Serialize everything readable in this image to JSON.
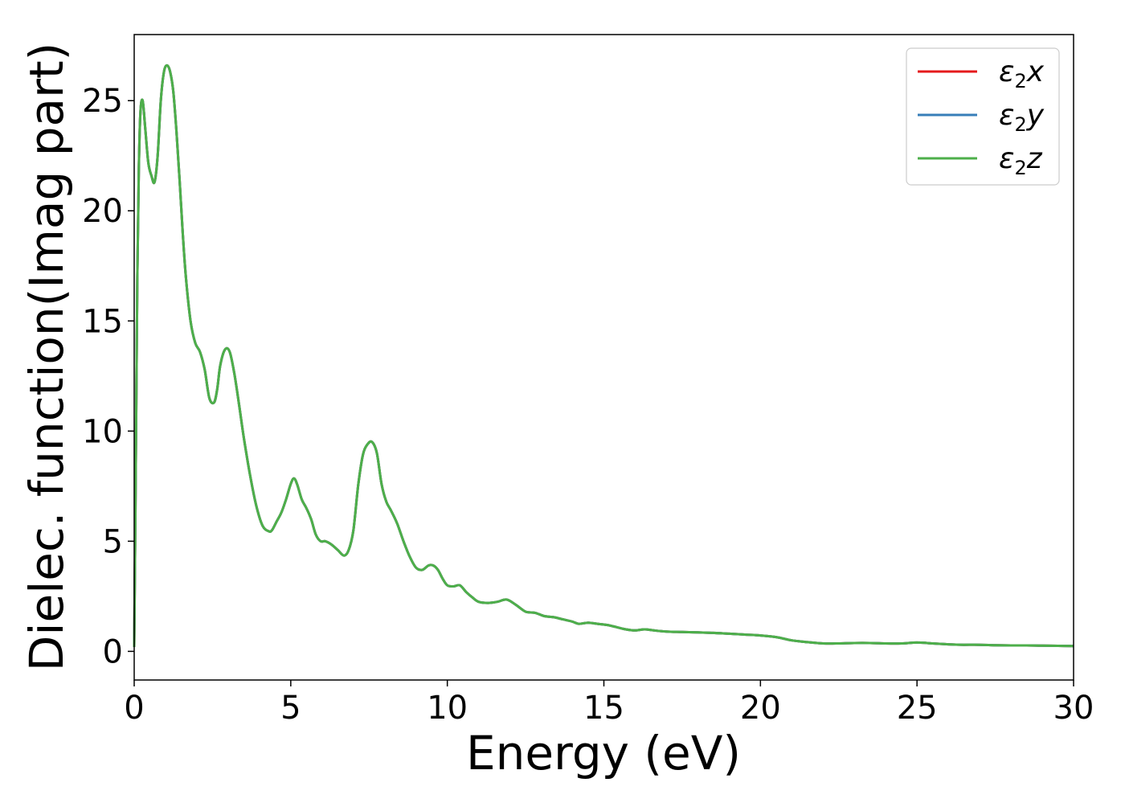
{
  "chart_data": {
    "type": "line",
    "title": "",
    "xlabel": "Energy (eV)",
    "ylabel": "Dielec. function(Imag part)",
    "xlim": [
      0,
      30
    ],
    "ylim": [
      -1.3,
      28
    ],
    "xticks": [
      0,
      5,
      10,
      15,
      20,
      25,
      30
    ],
    "yticks": [
      0,
      5,
      10,
      15,
      20,
      25
    ],
    "grid": false,
    "legend_position": "top-right",
    "x": [
      0,
      0.05,
      0.1,
      0.15,
      0.2,
      0.27,
      0.35,
      0.45,
      0.55,
      0.65,
      0.75,
      0.85,
      0.95,
      1.05,
      1.15,
      1.25,
      1.35,
      1.45,
      1.55,
      1.65,
      1.8,
      1.95,
      2.1,
      2.25,
      2.4,
      2.55,
      2.65,
      2.75,
      2.9,
      3.05,
      3.2,
      3.35,
      3.5,
      3.7,
      3.9,
      4.1,
      4.3,
      4.4,
      4.55,
      4.7,
      4.85,
      5.0,
      5.1,
      5.2,
      5.35,
      5.5,
      5.65,
      5.8,
      5.95,
      6.1,
      6.3,
      6.5,
      6.7,
      6.85,
      7.0,
      7.15,
      7.3,
      7.45,
      7.6,
      7.75,
      7.9,
      8.05,
      8.2,
      8.4,
      8.6,
      8.8,
      9.0,
      9.2,
      9.4,
      9.55,
      9.7,
      9.85,
      10.0,
      10.2,
      10.4,
      10.6,
      10.8,
      11.0,
      11.3,
      11.6,
      11.9,
      12.2,
      12.5,
      12.8,
      13.1,
      13.4,
      13.7,
      14.0,
      14.2,
      14.5,
      14.8,
      15.1,
      15.4,
      15.7,
      16.0,
      16.3,
      16.6,
      17.0,
      17.5,
      18.0,
      18.5,
      19.0,
      19.5,
      20.0,
      20.5,
      21.0,
      21.5,
      22.0,
      22.5,
      23.0,
      23.5,
      24.0,
      24.5,
      25.0,
      25.5,
      26.0,
      26.5,
      27.0,
      27.5,
      28.0,
      28.5,
      29.0,
      29.5,
      30.0
    ],
    "series": [
      {
        "name": "x",
        "color": "#e41a1c",
        "values": [
          0.2,
          8,
          17,
          22,
          24.5,
          25.0,
          23.8,
          22.2,
          21.6,
          21.3,
          22.5,
          25.0,
          26.3,
          26.6,
          26.3,
          25.4,
          23.6,
          21.4,
          19.0,
          17.0,
          15.0,
          14.0,
          13.6,
          12.8,
          11.5,
          11.3,
          11.9,
          13.0,
          13.7,
          13.6,
          12.6,
          11.2,
          9.7,
          8.0,
          6.6,
          5.7,
          5.45,
          5.5,
          5.9,
          6.3,
          6.9,
          7.6,
          7.85,
          7.6,
          6.9,
          6.5,
          6.0,
          5.3,
          5.0,
          5.0,
          4.85,
          4.6,
          4.35,
          4.6,
          5.5,
          7.5,
          8.9,
          9.4,
          9.5,
          9.0,
          7.6,
          6.8,
          6.4,
          5.8,
          5.0,
          4.3,
          3.8,
          3.7,
          3.9,
          3.9,
          3.7,
          3.3,
          3.0,
          2.95,
          3.0,
          2.7,
          2.45,
          2.25,
          2.2,
          2.25,
          2.35,
          2.1,
          1.8,
          1.75,
          1.6,
          1.55,
          1.45,
          1.35,
          1.25,
          1.3,
          1.25,
          1.2,
          1.1,
          1.0,
          0.95,
          1.0,
          0.95,
          0.9,
          0.88,
          0.86,
          0.84,
          0.8,
          0.76,
          0.72,
          0.65,
          0.5,
          0.42,
          0.36,
          0.36,
          0.38,
          0.38,
          0.36,
          0.36,
          0.4,
          0.36,
          0.32,
          0.3,
          0.3,
          0.28,
          0.27,
          0.27,
          0.26,
          0.25,
          0.24
        ]
      },
      {
        "name": "y",
        "color": "#377eb8",
        "values": [
          0.2,
          8,
          17,
          22,
          24.5,
          25.0,
          23.8,
          22.2,
          21.6,
          21.3,
          22.5,
          25.0,
          26.3,
          26.6,
          26.3,
          25.4,
          23.6,
          21.4,
          19.0,
          17.0,
          15.0,
          14.0,
          13.6,
          12.8,
          11.5,
          11.3,
          11.9,
          13.0,
          13.7,
          13.6,
          12.6,
          11.2,
          9.7,
          8.0,
          6.6,
          5.7,
          5.45,
          5.5,
          5.9,
          6.3,
          6.9,
          7.6,
          7.85,
          7.6,
          6.9,
          6.5,
          6.0,
          5.3,
          5.0,
          5.0,
          4.85,
          4.6,
          4.35,
          4.6,
          5.5,
          7.5,
          8.9,
          9.4,
          9.5,
          9.0,
          7.6,
          6.8,
          6.4,
          5.8,
          5.0,
          4.3,
          3.8,
          3.7,
          3.9,
          3.9,
          3.7,
          3.3,
          3.0,
          2.95,
          3.0,
          2.7,
          2.45,
          2.25,
          2.2,
          2.25,
          2.35,
          2.1,
          1.8,
          1.75,
          1.6,
          1.55,
          1.45,
          1.35,
          1.25,
          1.3,
          1.25,
          1.2,
          1.1,
          1.0,
          0.95,
          1.0,
          0.95,
          0.9,
          0.88,
          0.86,
          0.84,
          0.8,
          0.76,
          0.72,
          0.65,
          0.5,
          0.42,
          0.36,
          0.36,
          0.38,
          0.38,
          0.36,
          0.36,
          0.4,
          0.36,
          0.32,
          0.3,
          0.3,
          0.28,
          0.27,
          0.27,
          0.26,
          0.25,
          0.24
        ]
      },
      {
        "name": "z",
        "color": "#4daf4a",
        "values": [
          0.2,
          8,
          17,
          22,
          24.5,
          25.0,
          23.8,
          22.2,
          21.6,
          21.3,
          22.5,
          25.0,
          26.3,
          26.6,
          26.3,
          25.4,
          23.6,
          21.4,
          19.0,
          17.0,
          15.0,
          14.0,
          13.6,
          12.8,
          11.5,
          11.3,
          11.9,
          13.0,
          13.7,
          13.6,
          12.6,
          11.2,
          9.7,
          8.0,
          6.6,
          5.7,
          5.45,
          5.5,
          5.9,
          6.3,
          6.9,
          7.6,
          7.85,
          7.6,
          6.9,
          6.5,
          6.0,
          5.3,
          5.0,
          5.0,
          4.85,
          4.6,
          4.35,
          4.6,
          5.5,
          7.5,
          8.9,
          9.4,
          9.5,
          9.0,
          7.6,
          6.8,
          6.4,
          5.8,
          5.0,
          4.3,
          3.8,
          3.7,
          3.9,
          3.9,
          3.7,
          3.3,
          3.0,
          2.95,
          3.0,
          2.7,
          2.45,
          2.25,
          2.2,
          2.25,
          2.35,
          2.1,
          1.8,
          1.75,
          1.6,
          1.55,
          1.45,
          1.35,
          1.25,
          1.3,
          1.25,
          1.2,
          1.1,
          1.0,
          0.95,
          1.0,
          0.95,
          0.9,
          0.88,
          0.86,
          0.84,
          0.8,
          0.76,
          0.72,
          0.65,
          0.5,
          0.42,
          0.36,
          0.36,
          0.38,
          0.38,
          0.36,
          0.36,
          0.4,
          0.36,
          0.32,
          0.3,
          0.3,
          0.28,
          0.27,
          0.27,
          0.26,
          0.25,
          0.24
        ]
      }
    ],
    "legend": {
      "symbol": "ε",
      "subscript": "2"
    }
  }
}
